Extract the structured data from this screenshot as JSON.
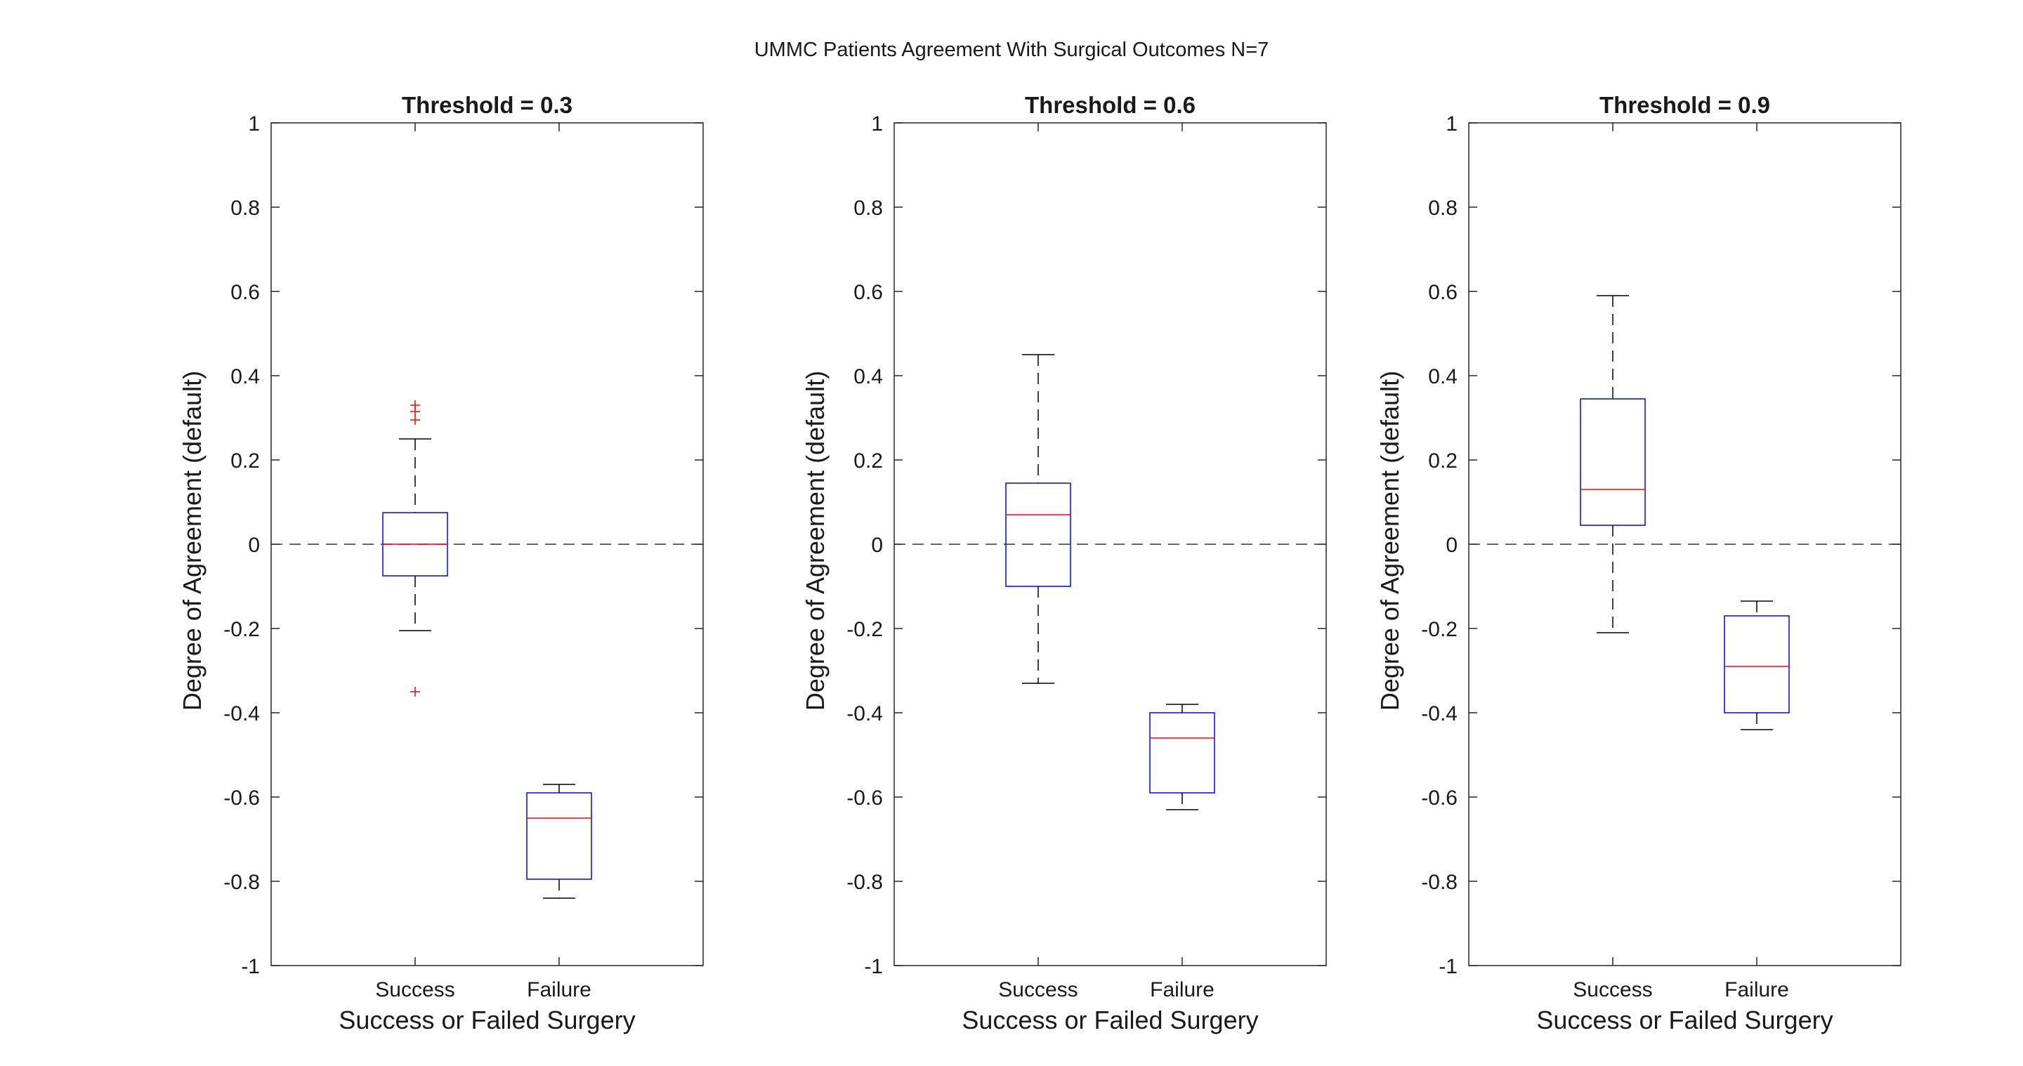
{
  "figure": {
    "suptitle": "UMMC Patients Agreement With Surgical Outcomes N=7"
  },
  "colors": {
    "box": "#0000ff",
    "median": "#ff0000",
    "outlier": "#ff0000",
    "whisker": "#000000",
    "axes": "#262626",
    "zero_line": "#333333"
  },
  "chart_data": [
    {
      "type": "box",
      "title": "Threshold = 0.3",
      "xlabel": "Success or Failed Surgery",
      "ylabel": "Degree of Agreement (default)",
      "ylim": [
        -1,
        1
      ],
      "yticks": [
        "1",
        "0.8",
        "0.6",
        "0.4",
        "0.2",
        "0",
        "-0.2",
        "-0.4",
        "-0.6",
        "-0.8",
        "-1"
      ],
      "categories": [
        "Success",
        "Failure"
      ],
      "reference_line": 0,
      "boxes": [
        {
          "category": "Success",
          "whisker_low": -0.205,
          "q1": -0.075,
          "median": 0.0,
          "q3": 0.075,
          "whisker_high": 0.25,
          "outliers": [
            0.33,
            0.315,
            0.295,
            -0.35
          ]
        },
        {
          "category": "Failure",
          "whisker_low": -0.84,
          "q1": -0.795,
          "median": -0.65,
          "q3": -0.59,
          "whisker_high": -0.57,
          "outliers": []
        }
      ]
    },
    {
      "type": "box",
      "title": "Threshold = 0.6",
      "xlabel": "Success or Failed Surgery",
      "ylabel": "Degree of Agreement (default)",
      "ylim": [
        -1,
        1
      ],
      "yticks": [
        "1",
        "0.8",
        "0.6",
        "0.4",
        "0.2",
        "0",
        "-0.2",
        "-0.4",
        "-0.6",
        "-0.8",
        "-1"
      ],
      "categories": [
        "Success",
        "Failure"
      ],
      "reference_line": 0,
      "boxes": [
        {
          "category": "Success",
          "whisker_low": -0.33,
          "q1": -0.1,
          "median": 0.07,
          "q3": 0.145,
          "whisker_high": 0.45,
          "outliers": []
        },
        {
          "category": "Failure",
          "whisker_low": -0.63,
          "q1": -0.59,
          "median": -0.46,
          "q3": -0.4,
          "whisker_high": -0.38,
          "outliers": []
        }
      ]
    },
    {
      "type": "box",
      "title": "Threshold = 0.9",
      "xlabel": "Success or Failed Surgery",
      "ylabel": "Degree of Agreement (default)",
      "ylim": [
        -1,
        1
      ],
      "yticks": [
        "1",
        "0.8",
        "0.6",
        "0.4",
        "0.2",
        "0",
        "-0.2",
        "-0.4",
        "-0.6",
        "-0.8",
        "-1"
      ],
      "categories": [
        "Success",
        "Failure"
      ],
      "reference_line": 0,
      "boxes": [
        {
          "category": "Success",
          "whisker_low": -0.21,
          "q1": 0.045,
          "median": 0.13,
          "q3": 0.345,
          "whisker_high": 0.59,
          "outliers": []
        },
        {
          "category": "Failure",
          "whisker_low": -0.44,
          "q1": -0.4,
          "median": -0.29,
          "q3": -0.17,
          "whisker_high": -0.135,
          "outliers": []
        }
      ]
    }
  ]
}
